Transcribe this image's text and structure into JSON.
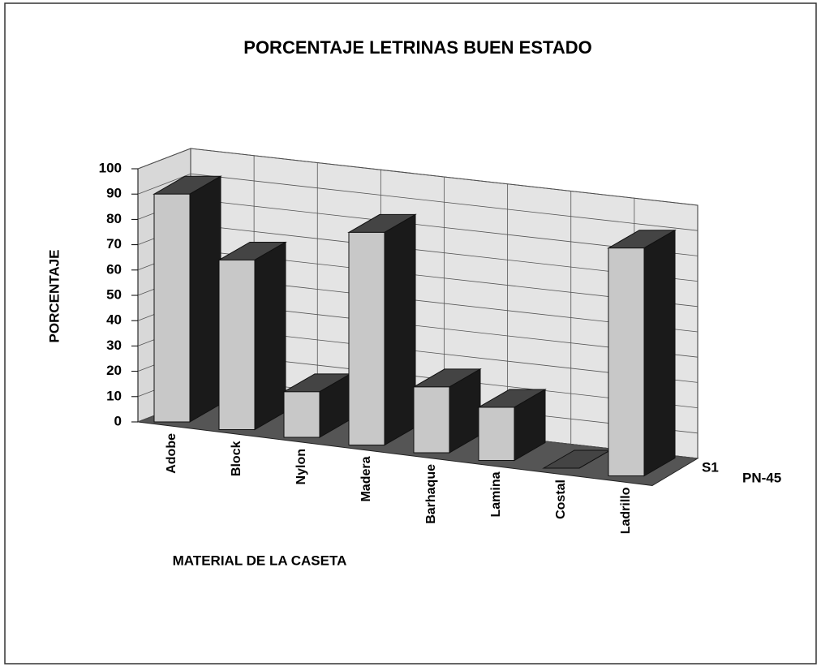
{
  "chart_data": {
    "type": "bar3d",
    "title": "PORCENTAJE LETRINAS BUEN ESTADO",
    "y_label": "PORCENTAJE",
    "x_label": "MATERIAL DE LA CASETA",
    "depth_categories": [
      "S1"
    ],
    "categories": [
      "Adobe",
      "Block",
      "Nylon",
      "Madera",
      "Barhaque",
      "Lamina",
      "Costal",
      "Ladrillo"
    ],
    "series": [
      {
        "name": "PN-45",
        "color": "#c8c8c8",
        "values": [
          90,
          67,
          18,
          84,
          26,
          21,
          0,
          90
        ]
      }
    ],
    "ylim": [
      0,
      100
    ],
    "yticks": [
      0,
      10,
      20,
      30,
      40,
      50,
      60,
      70,
      80,
      90,
      100
    ],
    "grid": true
  }
}
